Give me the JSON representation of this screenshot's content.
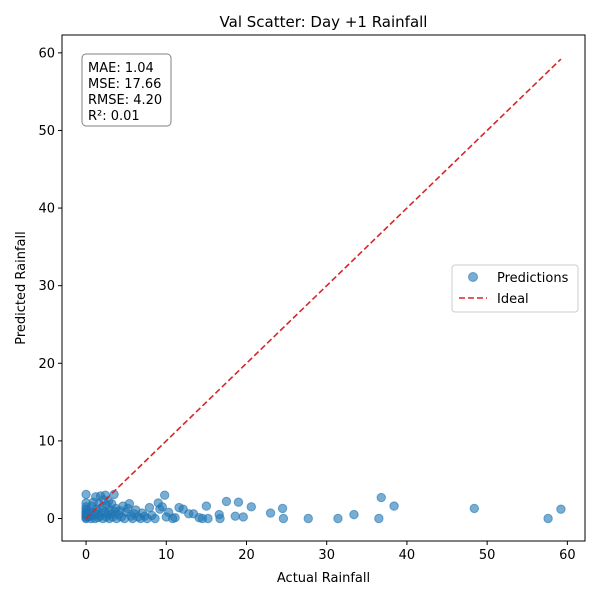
{
  "chart_data": {
    "type": "scatter",
    "title": "Val Scatter: Day +1 Rainfall",
    "xlabel": "Actual Rainfall",
    "ylabel": "Predicted Rainfall",
    "xlim": [
      -3,
      62.2
    ],
    "ylim": [
      -2.9,
      62.3
    ],
    "xticks": [
      0,
      10,
      20,
      30,
      40,
      50,
      60
    ],
    "yticks": [
      0,
      10,
      20,
      30,
      40,
      50,
      60
    ],
    "grid": false,
    "legend_position": "center-right",
    "metrics": [
      "MAE: 1.04",
      "MSE: 17.66",
      "RMSE: 4.20",
      "R²: 0.01"
    ],
    "series": [
      {
        "name": "Predictions",
        "kind": "scatter",
        "color": "#1f77b4",
        "points": [
          [
            0,
            3.1
          ],
          [
            0,
            2.0
          ],
          [
            0,
            1.5
          ],
          [
            0,
            1.2
          ],
          [
            0,
            0.9
          ],
          [
            0,
            0.7
          ],
          [
            0,
            0.5
          ],
          [
            0,
            0.3
          ],
          [
            0,
            0.1
          ],
          [
            0,
            0.0
          ],
          [
            0.2,
            0.2
          ],
          [
            0.3,
            0.6
          ],
          [
            0.4,
            1.0
          ],
          [
            0.5,
            0.3
          ],
          [
            0.6,
            0.0
          ],
          [
            0.7,
            1.6
          ],
          [
            0.8,
            0.4
          ],
          [
            0.9,
            2.1
          ],
          [
            1.0,
            0.8
          ],
          [
            1.1,
            0.0
          ],
          [
            1.2,
            2.8
          ],
          [
            1.3,
            1.2
          ],
          [
            1.4,
            0.5
          ],
          [
            1.5,
            0.1
          ],
          [
            1.6,
            1.9
          ],
          [
            1.7,
            0.3
          ],
          [
            1.8,
            2.9
          ],
          [
            1.9,
            0.7
          ],
          [
            2.0,
            1.4
          ],
          [
            2.1,
            0.0
          ],
          [
            2.2,
            2.4
          ],
          [
            2.3,
            0.9
          ],
          [
            2.4,
            3.0
          ],
          [
            2.5,
            0.2
          ],
          [
            2.6,
            1.7
          ],
          [
            2.7,
            0.5
          ],
          [
            2.8,
            2.2
          ],
          [
            2.9,
            0.0
          ],
          [
            3.0,
            1.1
          ],
          [
            3.1,
            0.6
          ],
          [
            3.2,
            1.9
          ],
          [
            3.3,
            0.2
          ],
          [
            3.5,
            3.1
          ],
          [
            3.6,
            0.9
          ],
          [
            3.7,
            1.3
          ],
          [
            3.8,
            0.0
          ],
          [
            4.0,
            0.5
          ],
          [
            4.2,
            1.0
          ],
          [
            4.4,
            0.2
          ],
          [
            4.6,
            1.6
          ],
          [
            4.8,
            0.0
          ],
          [
            5.0,
            0.8
          ],
          [
            5.2,
            1.3
          ],
          [
            5.4,
            1.9
          ],
          [
            5.6,
            0.3
          ],
          [
            5.8,
            0.0
          ],
          [
            6.0,
            0.6
          ],
          [
            6.2,
            1.1
          ],
          [
            6.5,
            0.2
          ],
          [
            6.8,
            0.0
          ],
          [
            7.0,
            0.7
          ],
          [
            7.3,
            0.3
          ],
          [
            7.6,
            0.0
          ],
          [
            7.9,
            1.4
          ],
          [
            8.2,
            0.4
          ],
          [
            8.6,
            0.0
          ],
          [
            9.0,
            2.0
          ],
          [
            9.2,
            1.2
          ],
          [
            9.5,
            1.5
          ],
          [
            9.8,
            3.0
          ],
          [
            10.0,
            0.2
          ],
          [
            10.3,
            0.8
          ],
          [
            10.8,
            0.0
          ],
          [
            11.1,
            0.1
          ],
          [
            11.6,
            1.4
          ],
          [
            12.1,
            1.2
          ],
          [
            12.8,
            0.6
          ],
          [
            13.4,
            0.6
          ],
          [
            14.1,
            0.1
          ],
          [
            14.5,
            0.0
          ],
          [
            15.0,
            1.6
          ],
          [
            15.2,
            0.0
          ],
          [
            16.6,
            0.5
          ],
          [
            16.7,
            0.0
          ],
          [
            17.5,
            2.2
          ],
          [
            18.6,
            0.3
          ],
          [
            19.0,
            2.1
          ],
          [
            19.6,
            0.2
          ],
          [
            20.6,
            1.5
          ],
          [
            23.0,
            0.7
          ],
          [
            24.5,
            1.3
          ],
          [
            24.6,
            0.0
          ],
          [
            27.7,
            0.0
          ],
          [
            31.4,
            0.0
          ],
          [
            33.4,
            0.5
          ],
          [
            36.5,
            0.0
          ],
          [
            36.8,
            2.7
          ],
          [
            38.4,
            1.6
          ],
          [
            48.4,
            1.3
          ],
          [
            57.6,
            0.0
          ],
          [
            59.2,
            1.2
          ]
        ]
      },
      {
        "name": "Ideal",
        "kind": "line",
        "style": "dashed",
        "color": "#d62728",
        "x": [
          0,
          59.2
        ],
        "y": [
          0,
          59.2
        ]
      }
    ]
  }
}
